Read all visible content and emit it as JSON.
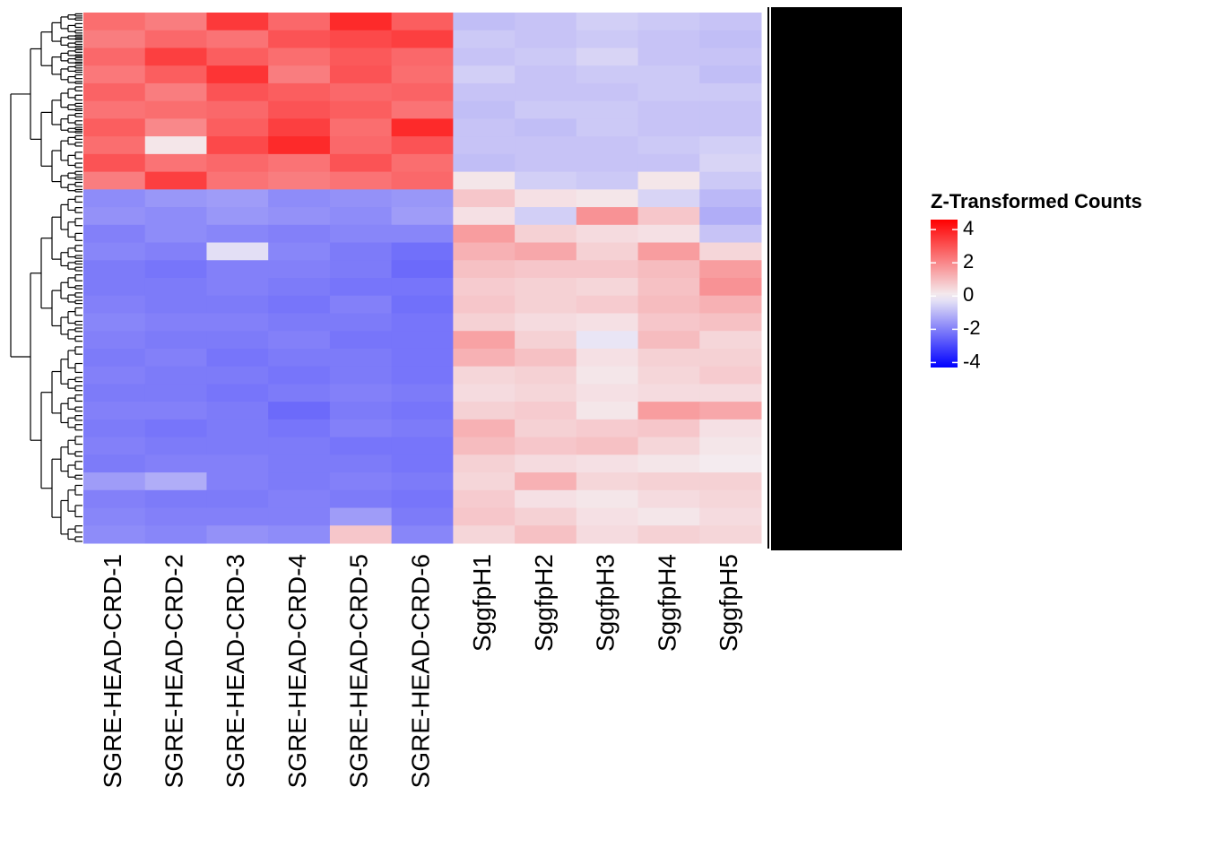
{
  "chart_data": {
    "type": "heatmap",
    "columns": [
      "SGRE-HEAD-CRD-1",
      "SGRE-HEAD-CRD-2",
      "SGRE-HEAD-CRD-3",
      "SGRE-HEAD-CRD-4",
      "SGRE-HEAD-CRD-5",
      "SGRE-HEAD-CRD-6",
      "SggfpH1",
      "SggfpH2",
      "SggfpH3",
      "SggfpH4",
      "SggfpH5"
    ],
    "z": [
      [
        2.5,
        2.2,
        3.5,
        2.6,
        3.8,
        2.8,
        -0.9,
        -0.8,
        -0.6,
        -0.7,
        -0.8
      ],
      [
        2.2,
        2.6,
        2.4,
        3.0,
        3.2,
        3.4,
        -0.7,
        -0.8,
        -0.7,
        -0.8,
        -0.9
      ],
      [
        2.6,
        3.4,
        2.8,
        2.5,
        2.9,
        2.6,
        -0.8,
        -0.7,
        -0.5,
        -0.8,
        -0.8
      ],
      [
        2.3,
        2.8,
        3.6,
        2.2,
        3.0,
        2.5,
        -0.6,
        -0.8,
        -0.7,
        -0.7,
        -0.9
      ],
      [
        2.7,
        2.2,
        3.0,
        2.8,
        2.6,
        2.7,
        -0.8,
        -0.8,
        -0.8,
        -0.7,
        -0.7
      ],
      [
        2.4,
        2.5,
        2.6,
        3.0,
        2.8,
        2.4,
        -0.9,
        -0.7,
        -0.7,
        -0.8,
        -0.8
      ],
      [
        2.8,
        2.0,
        2.8,
        3.4,
        2.5,
        3.8,
        -0.8,
        -0.9,
        -0.7,
        -0.8,
        -0.8
      ],
      [
        2.5,
        0.2,
        3.2,
        3.8,
        2.6,
        3.0,
        -0.8,
        -0.8,
        -0.8,
        -0.7,
        -0.6
      ],
      [
        3.0,
        2.4,
        2.6,
        2.4,
        3.0,
        2.5,
        -0.9,
        -0.8,
        -0.8,
        -0.8,
        -0.5
      ],
      [
        2.2,
        3.4,
        2.4,
        2.2,
        2.4,
        2.6,
        0.2,
        -0.6,
        -0.7,
        0.2,
        -0.7
      ],
      [
        -1.8,
        -1.6,
        -1.5,
        -1.8,
        -1.7,
        -1.6,
        0.8,
        0.3,
        0.2,
        -0.5,
        -1.0
      ],
      [
        -1.7,
        -1.8,
        -1.6,
        -1.7,
        -1.8,
        -1.5,
        0.3,
        -0.6,
        1.8,
        0.8,
        -1.2
      ],
      [
        -2.0,
        -1.8,
        -1.9,
        -2.0,
        -1.9,
        -1.9,
        1.6,
        0.6,
        0.4,
        0.3,
        -0.8
      ],
      [
        -1.9,
        -2.0,
        -0.3,
        -1.9,
        -2.1,
        -2.3,
        1.2,
        1.4,
        0.6,
        1.6,
        0.5
      ],
      [
        -2.1,
        -2.2,
        -2.0,
        -2.0,
        -2.1,
        -2.4,
        0.9,
        0.8,
        0.8,
        1.0,
        1.6
      ],
      [
        -2.1,
        -2.1,
        -2.0,
        -2.1,
        -2.2,
        -2.2,
        0.7,
        0.6,
        0.5,
        0.9,
        1.8
      ],
      [
        -2.0,
        -2.1,
        -2.1,
        -2.2,
        -2.0,
        -2.3,
        0.8,
        0.6,
        0.7,
        1.0,
        1.2
      ],
      [
        -1.9,
        -2.0,
        -2.0,
        -2.1,
        -2.1,
        -2.2,
        0.6,
        0.4,
        0.3,
        0.8,
        0.9
      ],
      [
        -2.0,
        -2.1,
        -2.1,
        -2.0,
        -2.2,
        -2.2,
        1.5,
        0.6,
        -0.2,
        1.0,
        0.5
      ],
      [
        -2.1,
        -2.0,
        -2.2,
        -2.1,
        -2.1,
        -2.2,
        1.2,
        0.9,
        0.3,
        0.6,
        0.6
      ],
      [
        -2.0,
        -2.1,
        -2.1,
        -2.2,
        -2.1,
        -2.2,
        0.5,
        0.6,
        0.2,
        0.5,
        0.7
      ],
      [
        -2.1,
        -2.1,
        -2.2,
        -2.1,
        -2.0,
        -2.1,
        0.4,
        0.5,
        0.3,
        0.4,
        0.4
      ],
      [
        -2.0,
        -2.0,
        -2.1,
        -2.4,
        -2.1,
        -2.2,
        0.6,
        0.7,
        0.2,
        1.6,
        1.4
      ],
      [
        -2.1,
        -2.2,
        -2.1,
        -2.2,
        -2.0,
        -2.1,
        1.2,
        0.6,
        0.7,
        0.8,
        0.3
      ],
      [
        -2.0,
        -2.1,
        -2.1,
        -2.1,
        -2.2,
        -2.2,
        1.0,
        0.8,
        0.9,
        0.5,
        0.2
      ],
      [
        -2.1,
        -2.0,
        -2.0,
        -2.1,
        -2.1,
        -2.2,
        0.6,
        0.4,
        0.3,
        0.2,
        0.1
      ],
      [
        -1.5,
        -1.2,
        -2.0,
        -2.1,
        -2.0,
        -2.1,
        0.5,
        1.2,
        0.5,
        0.6,
        0.6
      ],
      [
        -2.0,
        -2.1,
        -2.1,
        -2.0,
        -2.1,
        -2.2,
        0.7,
        0.3,
        0.2,
        0.4,
        0.5
      ],
      [
        -1.9,
        -2.0,
        -2.0,
        -2.0,
        -1.5,
        -2.1,
        0.8,
        0.6,
        0.3,
        0.2,
        0.4
      ],
      [
        -1.8,
        -1.9,
        -1.7,
        -1.8,
        0.8,
        -1.9,
        0.5,
        0.9,
        0.4,
        0.6,
        0.5
      ]
    ],
    "legend_title": "Z-Transformed Counts",
    "zlim": [
      -4.3,
      4.6
    ],
    "zticks": [
      4,
      2,
      0,
      -2,
      -4
    ],
    "colors": {
      "low": "#0000ff",
      "mid": "#f4f0f4",
      "high": "#ff0000"
    }
  }
}
